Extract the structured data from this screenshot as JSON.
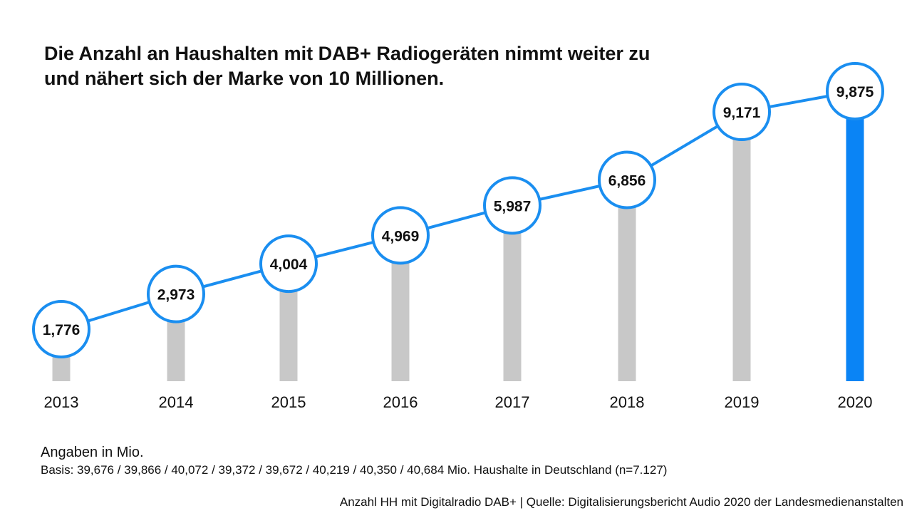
{
  "header": {
    "title_line1": "Die Anzahl an Haushalten mit DAB+ Radiogeräten nimmt weiter zu",
    "title_line2": "und nähert sich der Marke von 10 Millionen."
  },
  "chart_data": {
    "type": "line",
    "title": "Die Anzahl an Haushalten mit DAB+ Radiogeräten nimmt weiter zu und nähert sich der Marke von 10 Millionen.",
    "categories": [
      "2013",
      "2014",
      "2015",
      "2016",
      "2017",
      "2018",
      "2019",
      "2020"
    ],
    "values": [
      1.776,
      2.973,
      4.004,
      4.969,
      5.987,
      6.856,
      9.171,
      9.875
    ],
    "labels": [
      "1,776",
      "2,973",
      "4,004",
      "4,969",
      "5,987",
      "6,856",
      "9,171",
      "9,875"
    ],
    "xlabel": "",
    "ylabel": "",
    "unit": "Angaben in Mio.",
    "highlight_category": "2020",
    "grid": false,
    "colors": {
      "line": "#1a8ef0",
      "bar": "#c8c8c8",
      "bar_highlight": "#0a84f5",
      "marker_fill": "#ffffff",
      "text": "#111111"
    }
  },
  "notes": {
    "unit": "Angaben in Mio.",
    "base": "Basis: 39,676 / 39,866 / 40,072 / 39,372 / 39,672 / 40,219 / 40,350 / 40,684 Mio. Haushalte in Deutschland (n=7.127)"
  },
  "source": "Anzahl HH mit Digitalradio DAB+ | Quelle: Digitalisierungsbericht Audio 2020 der Landesmedienanstalten"
}
